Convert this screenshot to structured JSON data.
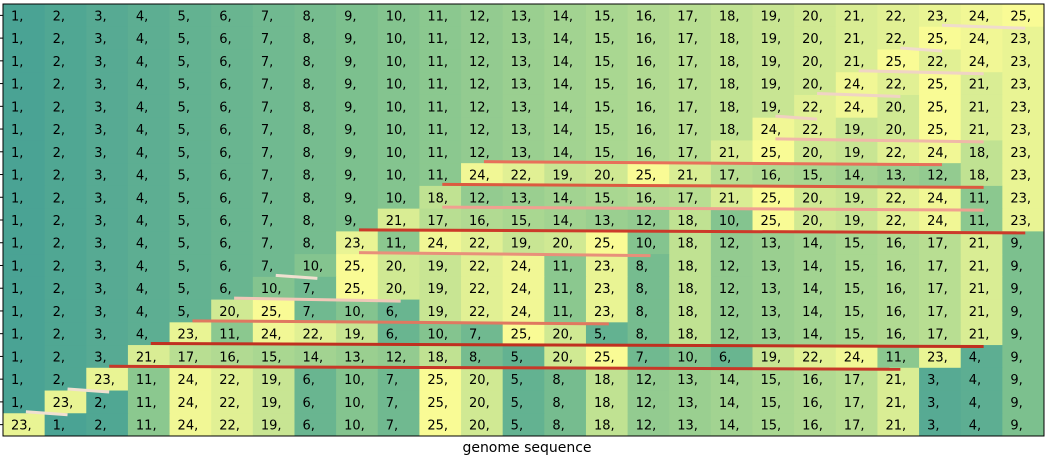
{
  "chart_data": {
    "type": "heatmap",
    "title": "",
    "xlabel": "genome sequence",
    "ylabel": "",
    "grid": false,
    "legend": "none",
    "colormap": [
      "#4aa394",
      "#7cc08e",
      "#b8de92",
      "#f9fb95"
    ],
    "value_range": [
      1,
      25
    ],
    "cell_label_suffix": ",",
    "rows": [
      [
        1,
        2,
        3,
        4,
        5,
        6,
        7,
        8,
        9,
        10,
        11,
        12,
        13,
        14,
        15,
        16,
        17,
        18,
        19,
        20,
        21,
        22,
        23,
        24,
        25
      ],
      [
        1,
        2,
        3,
        4,
        5,
        6,
        7,
        8,
        9,
        10,
        11,
        12,
        13,
        14,
        15,
        16,
        17,
        18,
        19,
        20,
        21,
        22,
        25,
        24,
        23
      ],
      [
        1,
        2,
        3,
        4,
        5,
        6,
        7,
        8,
        9,
        10,
        11,
        12,
        13,
        14,
        15,
        16,
        17,
        18,
        19,
        20,
        21,
        25,
        22,
        24,
        23
      ],
      [
        1,
        2,
        3,
        4,
        5,
        6,
        7,
        8,
        9,
        10,
        11,
        12,
        13,
        14,
        15,
        16,
        17,
        18,
        19,
        20,
        24,
        22,
        25,
        21,
        23
      ],
      [
        1,
        2,
        3,
        4,
        5,
        6,
        7,
        8,
        9,
        10,
        11,
        12,
        13,
        14,
        15,
        16,
        17,
        18,
        19,
        22,
        24,
        20,
        25,
        21,
        23
      ],
      [
        1,
        2,
        3,
        4,
        5,
        6,
        7,
        8,
        9,
        10,
        11,
        12,
        13,
        14,
        15,
        16,
        17,
        18,
        24,
        22,
        19,
        20,
        25,
        21,
        23
      ],
      [
        1,
        2,
        3,
        4,
        5,
        6,
        7,
        8,
        9,
        10,
        11,
        12,
        13,
        14,
        15,
        16,
        17,
        21,
        25,
        20,
        19,
        22,
        24,
        18,
        23
      ],
      [
        1,
        2,
        3,
        4,
        5,
        6,
        7,
        8,
        9,
        10,
        11,
        24,
        22,
        19,
        20,
        25,
        21,
        17,
        16,
        15,
        14,
        13,
        12,
        18,
        23
      ],
      [
        1,
        2,
        3,
        4,
        5,
        6,
        7,
        8,
        9,
        10,
        18,
        12,
        13,
        14,
        15,
        16,
        17,
        21,
        25,
        20,
        19,
        22,
        24,
        11,
        23
      ],
      [
        1,
        2,
        3,
        4,
        5,
        6,
        7,
        8,
        9,
        21,
        17,
        16,
        15,
        14,
        13,
        12,
        18,
        10,
        25,
        20,
        19,
        22,
        24,
        11,
        23
      ],
      [
        1,
        2,
        3,
        4,
        5,
        6,
        7,
        8,
        23,
        11,
        24,
        22,
        19,
        20,
        25,
        10,
        18,
        12,
        13,
        14,
        15,
        16,
        17,
        21,
        9
      ],
      [
        1,
        2,
        3,
        4,
        5,
        6,
        7,
        10,
        25,
        20,
        19,
        22,
        24,
        11,
        23,
        8,
        18,
        12,
        13,
        14,
        15,
        16,
        17,
        21,
        9
      ],
      [
        1,
        2,
        3,
        4,
        5,
        6,
        10,
        7,
        25,
        20,
        19,
        22,
        24,
        11,
        23,
        8,
        18,
        12,
        13,
        14,
        15,
        16,
        17,
        21,
        9
      ],
      [
        1,
        2,
        3,
        4,
        5,
        20,
        25,
        7,
        10,
        6,
        19,
        22,
        24,
        11,
        23,
        8,
        18,
        12,
        13,
        14,
        15,
        16,
        17,
        21,
        9
      ],
      [
        1,
        2,
        3,
        4,
        23,
        11,
        24,
        22,
        19,
        6,
        10,
        7,
        25,
        20,
        5,
        8,
        18,
        12,
        13,
        14,
        15,
        16,
        17,
        21,
        9
      ],
      [
        1,
        2,
        3,
        21,
        17,
        16,
        15,
        14,
        13,
        12,
        18,
        8,
        5,
        20,
        25,
        7,
        10,
        6,
        19,
        22,
        24,
        11,
        23,
        4,
        9
      ],
      [
        1,
        2,
        23,
        11,
        24,
        22,
        19,
        6,
        10,
        7,
        25,
        20,
        5,
        8,
        18,
        12,
        13,
        14,
        15,
        16,
        17,
        21,
        3,
        4,
        9
      ],
      [
        1,
        23,
        2,
        11,
        24,
        22,
        19,
        6,
        10,
        7,
        25,
        20,
        5,
        8,
        18,
        12,
        13,
        14,
        15,
        16,
        17,
        21,
        3,
        4,
        9
      ],
      [
        23,
        1,
        2,
        11,
        24,
        22,
        19,
        6,
        10,
        7,
        25,
        20,
        5,
        8,
        18,
        12,
        13,
        14,
        15,
        16,
        17,
        21,
        3,
        4,
        9
      ]
    ],
    "transitions": [
      {
        "row": 0,
        "from_col": 22,
        "to_col": 24,
        "color": "#f0dccc"
      },
      {
        "row": 1,
        "from_col": 21,
        "to_col": 22,
        "color": "#f0dccc"
      },
      {
        "row": 2,
        "from_col": 20,
        "to_col": 23,
        "color": "#f0d4c4"
      },
      {
        "row": 3,
        "from_col": 19,
        "to_col": 21,
        "color": "#f0d4c4"
      },
      {
        "row": 4,
        "from_col": 18,
        "to_col": 19,
        "color": "#f0d0c0"
      },
      {
        "row": 5,
        "from_col": 18,
        "to_col": 23,
        "color": "#f0b8a8"
      },
      {
        "row": 6,
        "from_col": 11,
        "to_col": 22,
        "color": "#e8705a"
      },
      {
        "row": 7,
        "from_col": 10,
        "to_col": 23,
        "color": "#dc5a40"
      },
      {
        "row": 8,
        "from_col": 10,
        "to_col": 23,
        "color": "#f0a090"
      },
      {
        "row": 9,
        "from_col": 8,
        "to_col": 24,
        "color": "#cc3a2a"
      },
      {
        "row": 10,
        "from_col": 8,
        "to_col": 15,
        "color": "#e8907a"
      },
      {
        "row": 11,
        "from_col": 6,
        "to_col": 7,
        "color": "#f0e0d0"
      },
      {
        "row": 12,
        "from_col": 5,
        "to_col": 9,
        "color": "#f0c8b8"
      },
      {
        "row": 13,
        "from_col": 4,
        "to_col": 14,
        "color": "#e07860"
      },
      {
        "row": 14,
        "from_col": 3,
        "to_col": 23,
        "color": "#c03020"
      },
      {
        "row": 15,
        "from_col": 2,
        "to_col": 21,
        "color": "#c83828"
      },
      {
        "row": 16,
        "from_col": 1,
        "to_col": 2,
        "color": "#f0e0d0"
      },
      {
        "row": 17,
        "from_col": 0,
        "to_col": 1,
        "color": "#f0e0d0"
      }
    ]
  }
}
